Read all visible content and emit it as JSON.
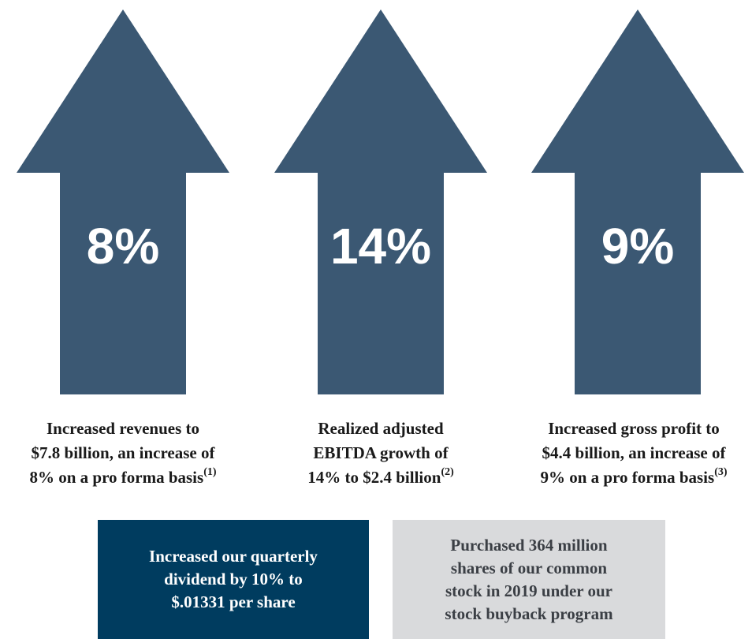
{
  "colors": {
    "arrow_fill": "#3b5873",
    "box_dark": "#003c5f",
    "box_light": "#d9dadc",
    "caption_text": "#1a1a1a"
  },
  "arrows": [
    {
      "value": "8%",
      "caption": [
        "Increased revenues to",
        "$7.8 billion, an increase of",
        "8% on a pro forma basis"
      ],
      "footnote": "(1)"
    },
    {
      "value": "14%",
      "caption": [
        "Realized adjusted",
        "EBITDA growth of",
        "14% to $2.4 billion"
      ],
      "footnote": "(2)"
    },
    {
      "value": "9%",
      "caption": [
        "Increased gross profit to",
        "$4.4 billion, an increase of",
        "9% on a pro forma basis"
      ],
      "footnote": "(3)"
    }
  ],
  "boxes": {
    "dividend": [
      "Increased our quarterly",
      "dividend by 10% to",
      "$.01331 per share"
    ],
    "buyback": [
      "Purchased 364 million",
      "shares of our common",
      "stock in 2019 under our",
      "stock buyback program"
    ]
  }
}
